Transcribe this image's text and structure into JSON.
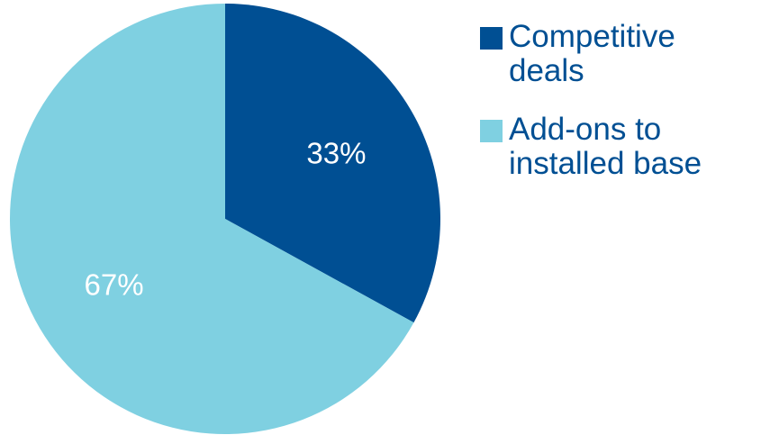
{
  "chart_data": {
    "type": "pie",
    "categories": [
      "Competitive\ndeals",
      "Add-ons to\ninstalled base"
    ],
    "values": [
      33,
      67
    ],
    "value_labels": [
      "33%",
      "67%"
    ],
    "colors": [
      "#004f93",
      "#7fd0e1"
    ],
    "legend_position": "right",
    "start": "top",
    "direction": "clockwise"
  }
}
